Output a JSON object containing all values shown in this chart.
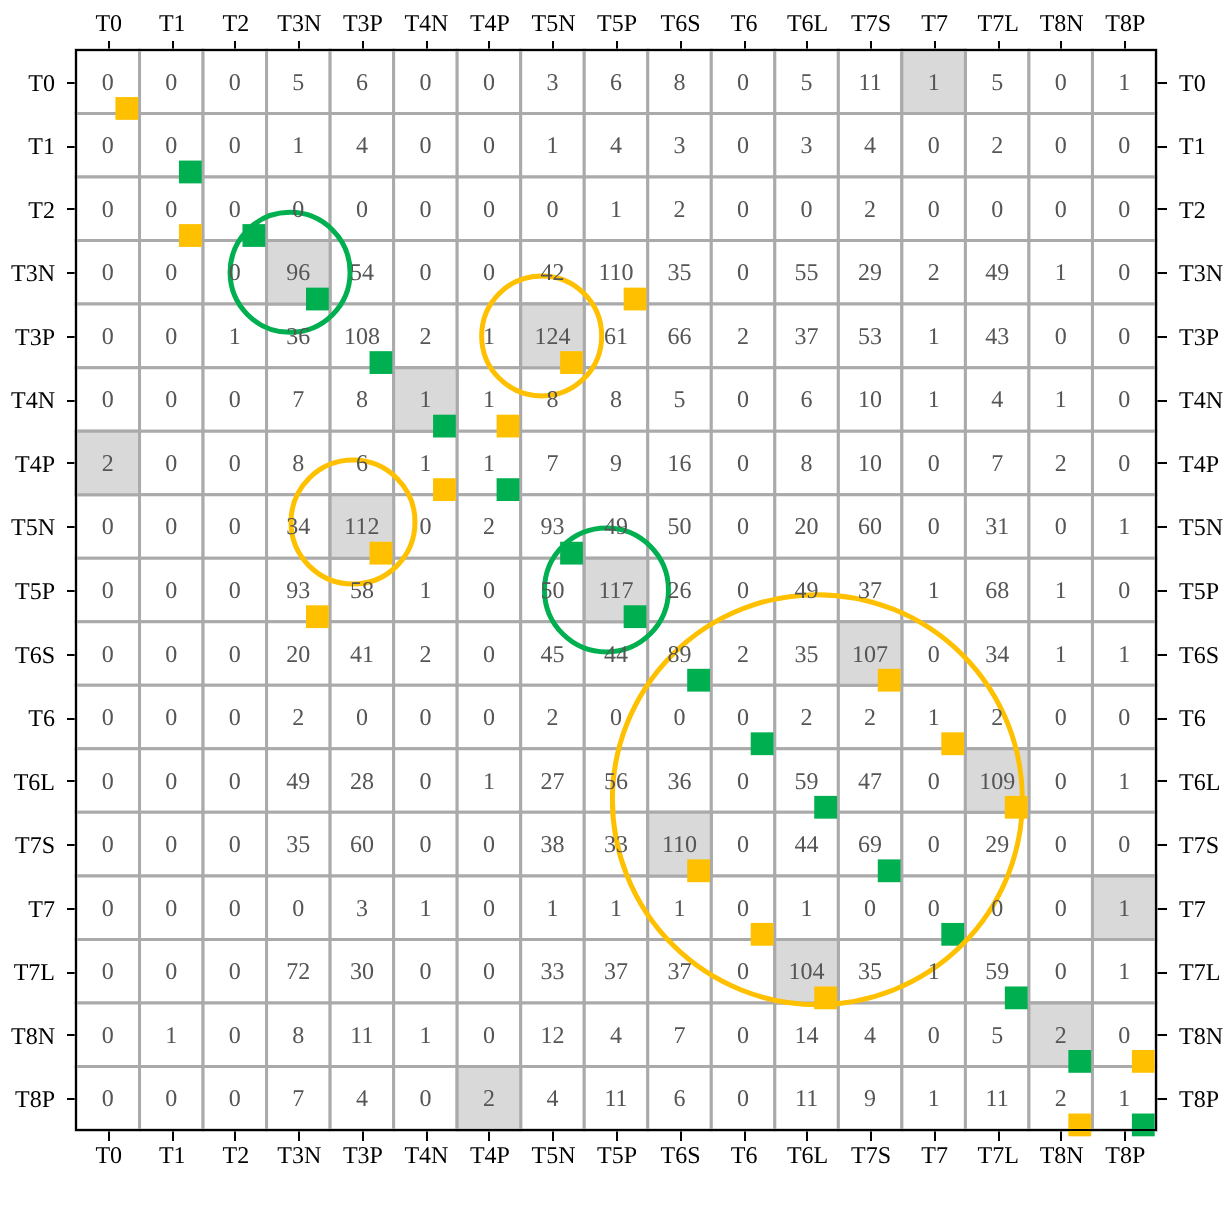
{
  "chart_data": {
    "type": "heatmap",
    "categories": [
      "T0",
      "T1",
      "T2",
      "T3N",
      "T3P",
      "T4N",
      "T4P",
      "T5N",
      "T5P",
      "T6S",
      "T6",
      "T6L",
      "T7S",
      "T7",
      "T7L",
      "T8N",
      "T8P"
    ],
    "y_categories": [
      "T0",
      "T1",
      "T2",
      "T3N",
      "T3P",
      "T4N",
      "T4P",
      "T5N",
      "T5P",
      "T6S",
      "T6",
      "T6L",
      "T7S",
      "T7",
      "T7L",
      "T8N",
      "T8P"
    ],
    "y2_categories": [
      "T0",
      "T1",
      "T2",
      "T3N",
      "T3P",
      "T4N",
      "T4P",
      "T5N",
      "T5P",
      "T6S",
      "T6",
      "T6L",
      "T7S",
      "T7",
      "T7L",
      "T8N",
      "T8P"
    ],
    "cells": [
      [
        0,
        0,
        0,
        5,
        6,
        0,
        0,
        3,
        6,
        8,
        0,
        5,
        11,
        1,
        5,
        0,
        1
      ],
      [
        0,
        0,
        0,
        1,
        4,
        0,
        0,
        1,
        4,
        3,
        0,
        3,
        4,
        0,
        2,
        0,
        0
      ],
      [
        0,
        0,
        0,
        0,
        0,
        0,
        0,
        0,
        1,
        2,
        0,
        0,
        2,
        0,
        0,
        0,
        0
      ],
      [
        0,
        0,
        0,
        96,
        54,
        0,
        0,
        42,
        110,
        35,
        0,
        55,
        29,
        2,
        49,
        1,
        0
      ],
      [
        0,
        0,
        1,
        36,
        108,
        2,
        1,
        124,
        61,
        66,
        2,
        37,
        53,
        1,
        43,
        0,
        0
      ],
      [
        0,
        0,
        0,
        7,
        8,
        1,
        1,
        8,
        8,
        5,
        0,
        6,
        10,
        1,
        4,
        1,
        0
      ],
      [
        2,
        0,
        0,
        8,
        6,
        1,
        1,
        7,
        9,
        16,
        0,
        8,
        10,
        0,
        7,
        2,
        0
      ],
      [
        0,
        0,
        0,
        34,
        112,
        0,
        2,
        93,
        49,
        50,
        0,
        20,
        60,
        0,
        31,
        0,
        1
      ],
      [
        0,
        0,
        0,
        93,
        58,
        1,
        0,
        50,
        117,
        26,
        0,
        49,
        37,
        1,
        68,
        1,
        0
      ],
      [
        0,
        0,
        0,
        20,
        41,
        2,
        0,
        45,
        44,
        89,
        2,
        35,
        107,
        0,
        34,
        1,
        1
      ],
      [
        0,
        0,
        0,
        2,
        0,
        0,
        0,
        2,
        0,
        0,
        0,
        2,
        2,
        1,
        2,
        0,
        0
      ],
      [
        0,
        0,
        0,
        49,
        28,
        0,
        1,
        27,
        56,
        36,
        0,
        59,
        47,
        0,
        109,
        0,
        1
      ],
      [
        0,
        0,
        0,
        35,
        60,
        0,
        0,
        38,
        33,
        110,
        0,
        44,
        69,
        0,
        29,
        0,
        0
      ],
      [
        0,
        0,
        0,
        0,
        3,
        1,
        0,
        1,
        1,
        1,
        0,
        1,
        0,
        0,
        0,
        0,
        1
      ],
      [
        0,
        0,
        0,
        72,
        30,
        0,
        0,
        33,
        37,
        37,
        0,
        104,
        35,
        1,
        59,
        0,
        1
      ],
      [
        0,
        1,
        0,
        8,
        11,
        1,
        0,
        12,
        4,
        7,
        0,
        14,
        4,
        0,
        5,
        2,
        0
      ],
      [
        0,
        0,
        0,
        7,
        4,
        0,
        2,
        4,
        11,
        6,
        0,
        11,
        9,
        1,
        11,
        2,
        1
      ]
    ],
    "data_labels": true
  }
}
